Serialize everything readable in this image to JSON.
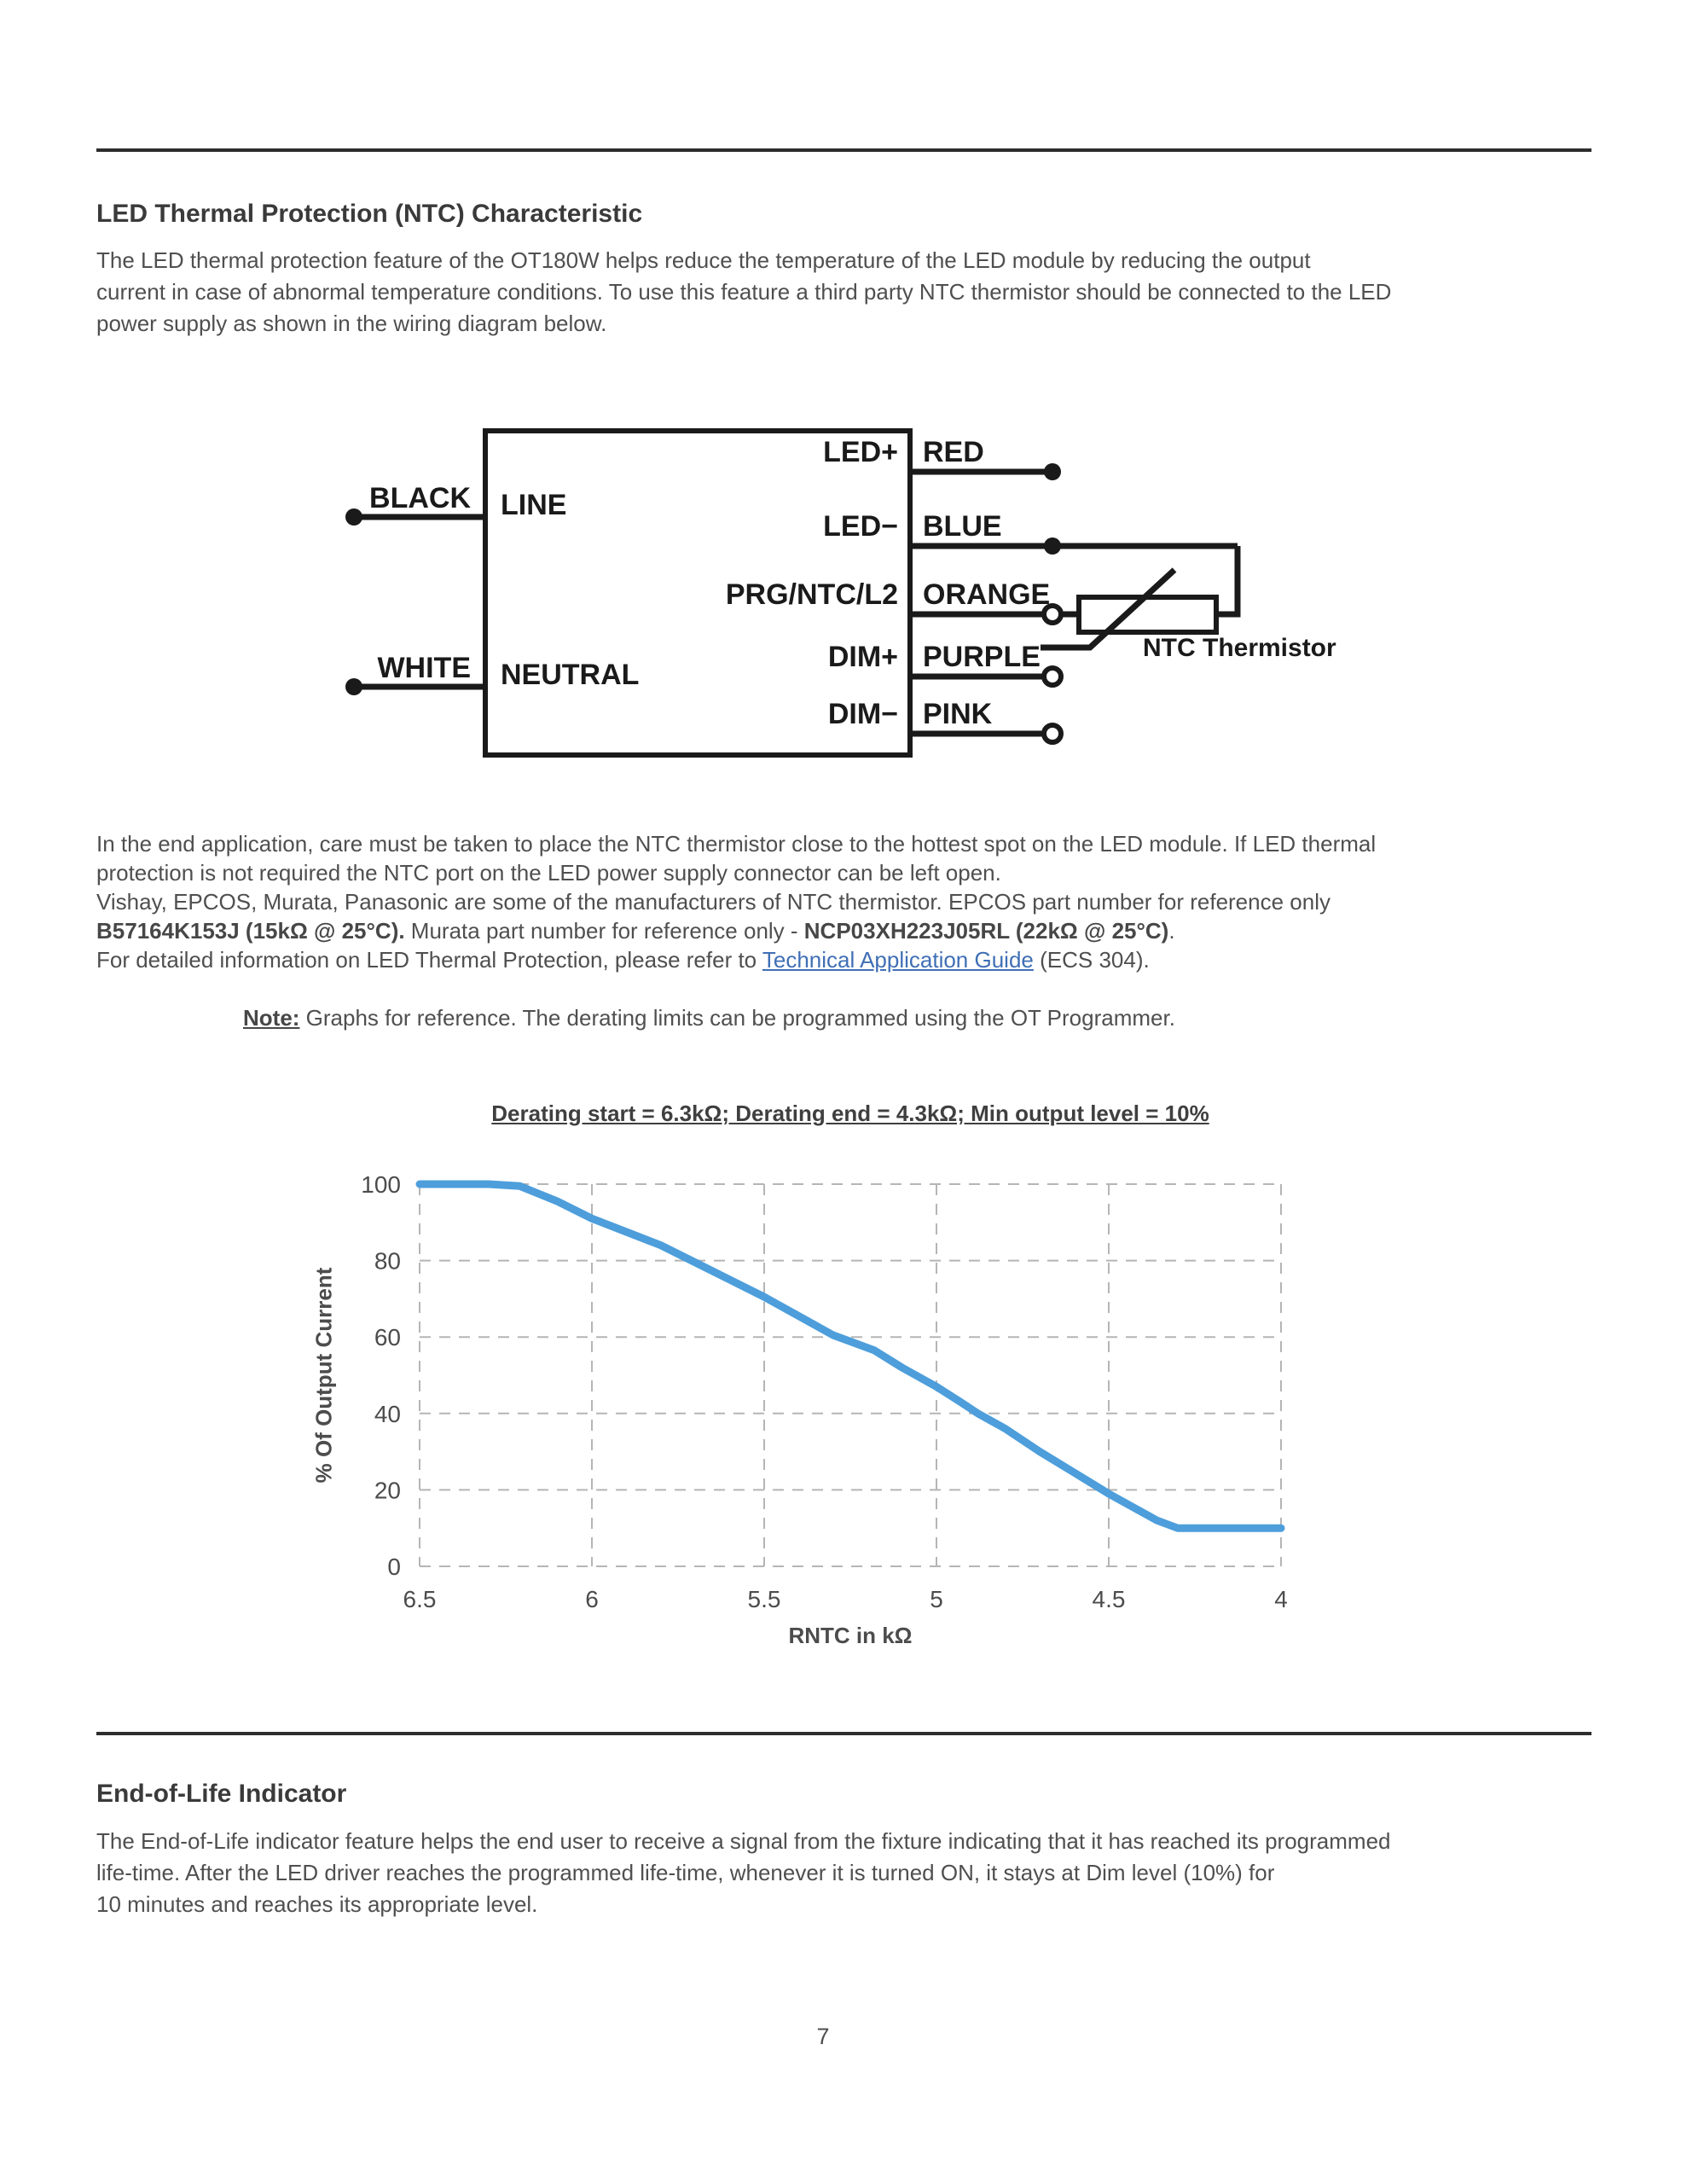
{
  "page": {
    "number": "7"
  },
  "section1": {
    "title": "LED Thermal Protection (NTC) Characteristic",
    "lines": [
      "The LED thermal protection feature of the OT180W helps reduce the temperature of the LED module by reducing the output",
      "current in case of abnormal temperature conditions. To use this feature a third party NTC thermistor should be connected to the LED",
      "power supply as shown in the wiring diagram below."
    ]
  },
  "diagram": {
    "black": "BLACK",
    "white": "WHITE",
    "line": "LINE",
    "neutral": "NEUTRAL",
    "terminals": [
      "LED+",
      "LED−",
      "PRG/NTC/L2",
      "DIM+",
      "DIM−"
    ],
    "wires": [
      "RED",
      "BLUE",
      "ORANGE",
      "PURPLE",
      "PINK"
    ],
    "thermistor": "NTC Thermistor"
  },
  "p2": {
    "line1": "In the end application, care must be taken to place the NTC thermistor close to the hottest spot on the LED module. If LED thermal",
    "line2": "protection is not required the NTC port on the LED power supply connector can be left open.",
    "line3": "Vishay, EPCOS, Murata, Panasonic are some of the manufacturers of NTC thermistor. EPCOS part number for reference only",
    "line4_bold1": "B57164K153J (15kΩ @ 25°C).",
    "line4_text1": " Murata part number for reference only - ",
    "line4_bold2": "NCP03XH223J05RL (22kΩ @ 25°C)",
    "line4_text2": ".",
    "line5_text1": "For detailed information on LED Thermal Protection, please refer to ",
    "line5_link": "Technical Application Guide",
    "line5_text2": " (ECS 304)."
  },
  "note": {
    "label": "Note:",
    "text": "  Graphs for reference. The derating limits can be programmed using the OT Programmer."
  },
  "chart_data": {
    "type": "line",
    "title": "Derating start = 6.3kΩ; Derating end = 4.3kΩ; Min output level = 10%",
    "xlabel": "RNTC in kΩ",
    "ylabel": "% Of Output Current",
    "xlim": [
      6.5,
      4
    ],
    "ylim": [
      0,
      100
    ],
    "x_reversed": true,
    "grid": "dashed-full-frame",
    "x_ticks": [
      6.5,
      6,
      5.5,
      5,
      4.5,
      4
    ],
    "x_tick_labels": [
      "6.5",
      "6",
      "5.5",
      "5",
      "4.5",
      "4"
    ],
    "y_ticks": [
      0,
      20,
      40,
      60,
      80,
      100
    ],
    "line_color": "#4d9edb",
    "series": [
      {
        "name": "derating-curve",
        "points": [
          [
            6.5,
            100
          ],
          [
            6.3,
            100
          ],
          [
            6.21,
            99.5
          ],
          [
            6.1,
            95.5
          ],
          [
            6.0,
            91
          ],
          [
            5.9,
            87.5
          ],
          [
            5.8,
            84
          ],
          [
            5.7,
            79.5
          ],
          [
            5.6,
            75
          ],
          [
            5.5,
            70.5
          ],
          [
            5.4,
            65.5
          ],
          [
            5.3,
            60.5
          ],
          [
            5.24,
            58.5
          ],
          [
            5.18,
            56.5
          ],
          [
            5.1,
            52
          ],
          [
            5.0,
            47
          ],
          [
            4.93,
            43
          ],
          [
            4.88,
            40
          ],
          [
            4.8,
            36
          ],
          [
            4.7,
            30
          ],
          [
            4.6,
            24.5
          ],
          [
            4.5,
            19
          ],
          [
            4.43,
            15.5
          ],
          [
            4.36,
            12
          ],
          [
            4.3,
            10
          ],
          [
            4.15,
            10
          ],
          [
            4.0,
            10
          ]
        ]
      }
    ]
  },
  "section2": {
    "title": "End-of-Life Indicator",
    "lines": [
      "The End-of-Life indicator feature helps the end user to receive a signal from the fixture indicating that it has reached its programmed",
      "life-time. After the LED driver reaches the programmed life-time, whenever it is turned ON, it stays at Dim level (10%) for",
      "10 minutes and reaches its appropriate level."
    ]
  }
}
